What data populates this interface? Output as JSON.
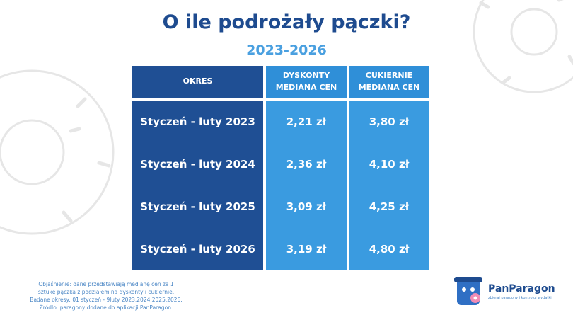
{
  "header": {
    "title": "O ile podrożały pączki?",
    "subtitle": "2023-2026"
  },
  "table": {
    "columns": [
      "OKRES",
      "DYSKONTY MEDIANA CEN",
      "CUKIERNIE MEDIANA CEN"
    ],
    "rows": [
      [
        "Styczeń - luty 2023",
        "2,21 zł",
        "3,80 zł"
      ],
      [
        "Styczeń - luty 2024",
        "2,36 zł",
        "4,10 zł"
      ],
      [
        "Styczeń - luty 2025",
        "3,09 zł",
        "4,25 zł"
      ],
      [
        "Styczeń - luty 2026",
        "3,19 zł",
        "4,80 zł"
      ]
    ]
  },
  "footnote": [
    "Objaśnienie: dane przedstawiają medianę cen za 1",
    "sztukę pączka z podziałem na dyskonty i cukiernie.",
    "Badane okresy: 01 styczeń - 9luty 2023,2024,2025,2026.",
    "Źródło: paragony dodane do aplikacji PanParagon."
  ],
  "logo": {
    "name": "PanParagon",
    "tagline": "zbieraj paragony i kontroluj wydatki"
  }
}
